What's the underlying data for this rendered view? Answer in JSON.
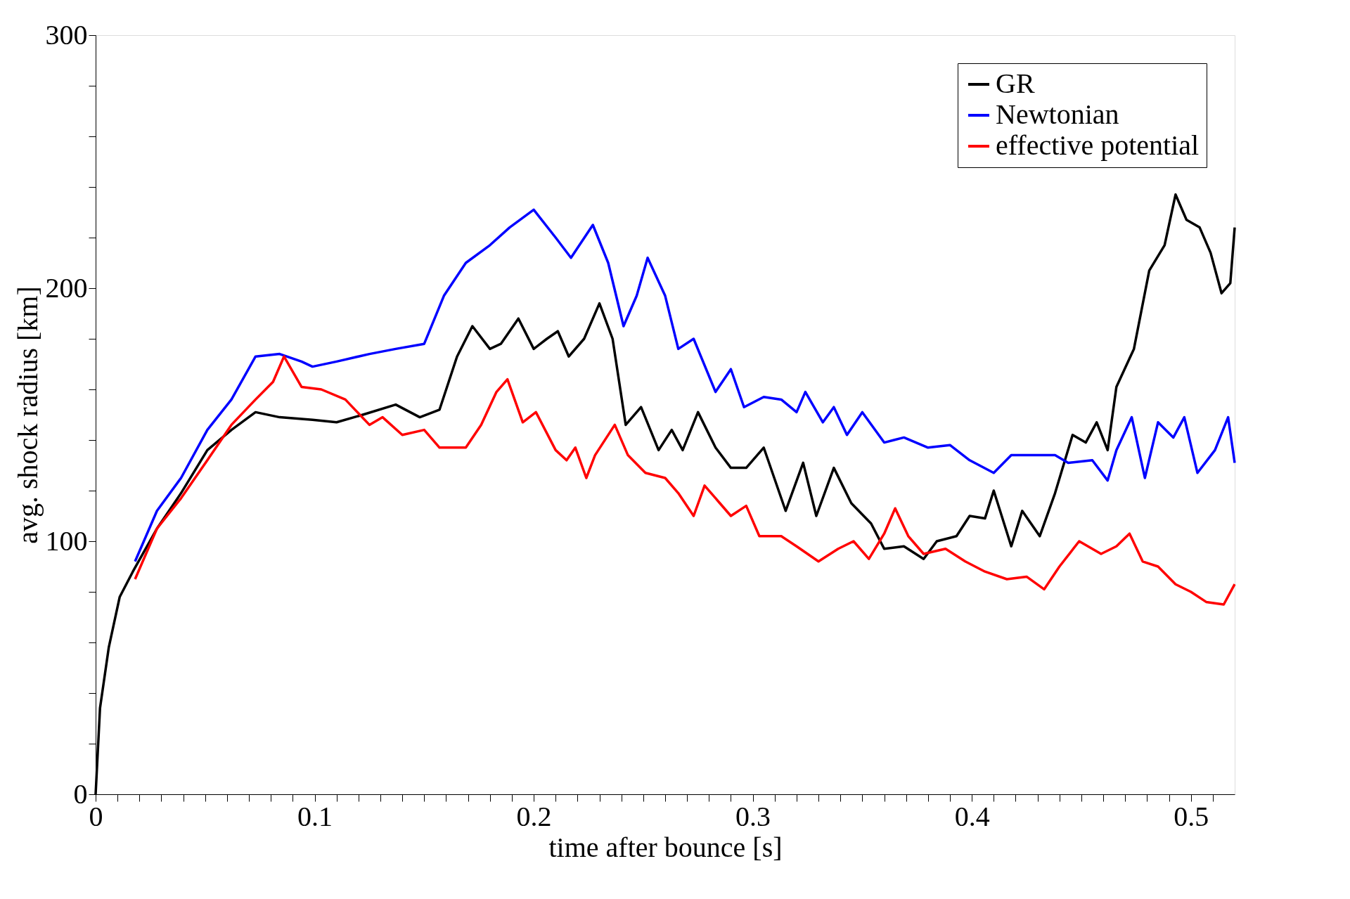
{
  "chart_data": {
    "type": "line",
    "xlabel": "time after bounce [s]",
    "ylabel": "avg. shock radius [km]",
    "xlim": [
      0,
      0.52
    ],
    "ylim": [
      0,
      300
    ],
    "xticks": [
      0,
      {
        "value": 0.01,
        "label": null
      },
      {
        "value": 0.02,
        "label": null
      },
      {
        "value": 0.03,
        "label": null
      },
      {
        "value": 0.04,
        "label": null
      },
      {
        "value": 0.05,
        "label": null
      },
      {
        "value": 0.06,
        "label": null
      },
      {
        "value": 0.07,
        "label": null
      },
      {
        "value": 0.08,
        "label": null
      },
      {
        "value": 0.09,
        "label": null
      },
      0.1,
      {
        "value": 0.11,
        "label": null
      },
      {
        "value": 0.12,
        "label": null
      },
      {
        "value": 0.13,
        "label": null
      },
      {
        "value": 0.14,
        "label": null
      },
      {
        "value": 0.15,
        "label": null
      },
      {
        "value": 0.16,
        "label": null
      },
      {
        "value": 0.17,
        "label": null
      },
      {
        "value": 0.18,
        "label": null
      },
      {
        "value": 0.19,
        "label": null
      },
      0.2,
      {
        "value": 0.21,
        "label": null
      },
      {
        "value": 0.22,
        "label": null
      },
      {
        "value": 0.23,
        "label": null
      },
      {
        "value": 0.24,
        "label": null
      },
      {
        "value": 0.25,
        "label": null
      },
      {
        "value": 0.26,
        "label": null
      },
      {
        "value": 0.27,
        "label": null
      },
      {
        "value": 0.28,
        "label": null
      },
      {
        "value": 0.29,
        "label": null
      },
      0.3,
      {
        "value": 0.31,
        "label": null
      },
      {
        "value": 0.32,
        "label": null
      },
      {
        "value": 0.33,
        "label": null
      },
      {
        "value": 0.34,
        "label": null
      },
      {
        "value": 0.35,
        "label": null
      },
      {
        "value": 0.36,
        "label": null
      },
      {
        "value": 0.37,
        "label": null
      },
      {
        "value": 0.38,
        "label": null
      },
      {
        "value": 0.39,
        "label": null
      },
      0.4,
      {
        "value": 0.41,
        "label": null
      },
      {
        "value": 0.42,
        "label": null
      },
      {
        "value": 0.43,
        "label": null
      },
      {
        "value": 0.44,
        "label": null
      },
      {
        "value": 0.45,
        "label": null
      },
      {
        "value": 0.46,
        "label": null
      },
      {
        "value": 0.47,
        "label": null
      },
      {
        "value": 0.48,
        "label": null
      },
      {
        "value": 0.49,
        "label": null
      },
      0.5,
      {
        "value": 0.51,
        "label": null
      }
    ],
    "yticks": [
      0,
      {
        "value": 20,
        "label": null
      },
      {
        "value": 40,
        "label": null
      },
      {
        "value": 60,
        "label": null
      },
      {
        "value": 80,
        "label": null
      },
      100,
      {
        "value": 120,
        "label": null
      },
      {
        "value": 140,
        "label": null
      },
      {
        "value": 160,
        "label": null
      },
      {
        "value": 180,
        "label": null
      },
      200,
      {
        "value": 220,
        "label": null
      },
      {
        "value": 240,
        "label": null
      },
      {
        "value": 260,
        "label": null
      },
      {
        "value": 280,
        "label": null
      },
      300
    ],
    "grid": false,
    "legend": "top right",
    "line_style": "solid",
    "marker": "none",
    "series": [
      {
        "name": "GR",
        "color": "#000000",
        "x": [
          0,
          0.002,
          0.006,
          0.011,
          0.017,
          0.028,
          0.039,
          0.051,
          0.062,
          0.073,
          0.084,
          0.099,
          0.11,
          0.122,
          0.137,
          0.148,
          0.157,
          0.165,
          0.172,
          0.18,
          0.185,
          0.193,
          0.2,
          0.206,
          0.211,
          0.216,
          0.223,
          0.23,
          0.236,
          0.242,
          0.249,
          0.257,
          0.263,
          0.268,
          0.275,
          0.283,
          0.29,
          0.297,
          0.305,
          0.315,
          0.323,
          0.329,
          0.337,
          0.345,
          0.354,
          0.36,
          0.369,
          0.378,
          0.384,
          0.393,
          0.399,
          0.406,
          0.41,
          0.418,
          0.423,
          0.431,
          0.438,
          0.446,
          0.452,
          0.457,
          0.462,
          0.466,
          0.474,
          0.481,
          0.488,
          0.493,
          0.498,
          0.504,
          0.509,
          0.514,
          0.518,
          0.52
        ],
        "values": [
          0,
          34,
          58,
          78,
          88,
          105,
          119,
          136,
          144,
          151,
          149,
          148,
          147,
          150,
          154,
          149,
          152,
          173,
          185,
          176,
          178,
          188,
          176,
          180,
          183,
          173,
          180,
          194,
          180,
          146,
          153,
          136,
          144,
          136,
          151,
          137,
          129,
          129,
          137,
          112,
          131,
          110,
          129,
          115,
          107,
          97,
          98,
          93,
          100,
          102,
          110,
          109,
          120,
          98,
          112,
          102,
          119,
          142,
          139,
          147,
          136,
          161,
          176,
          207,
          217,
          237,
          227,
          224,
          214,
          198,
          202,
          224
        ]
      },
      {
        "name": "Newtonian",
        "color": "#0000ff",
        "x": [
          0.018,
          0.028,
          0.039,
          0.051,
          0.062,
          0.073,
          0.084,
          0.094,
          0.099,
          0.11,
          0.125,
          0.137,
          0.15,
          0.159,
          0.169,
          0.18,
          0.189,
          0.2,
          0.21,
          0.217,
          0.227,
          0.234,
          0.241,
          0.247,
          0.252,
          0.26,
          0.266,
          0.273,
          0.283,
          0.29,
          0.296,
          0.305,
          0.313,
          0.32,
          0.324,
          0.332,
          0.337,
          0.343,
          0.35,
          0.36,
          0.369,
          0.38,
          0.39,
          0.399,
          0.41,
          0.418,
          0.429,
          0.438,
          0.444,
          0.455,
          0.462,
          0.466,
          0.473,
          0.479,
          0.485,
          0.492,
          0.497,
          0.503,
          0.511,
          0.517,
          0.52
        ],
        "values": [
          92,
          112,
          125,
          144,
          156,
          173,
          174,
          171,
          169,
          171,
          174,
          176,
          178,
          197,
          210,
          217,
          224,
          231,
          220,
          212,
          225,
          210,
          185,
          197,
          212,
          197,
          176,
          180,
          159,
          168,
          153,
          157,
          156,
          151,
          159,
          147,
          153,
          142,
          151,
          139,
          141,
          137,
          138,
          132,
          127,
          134,
          134,
          134,
          131,
          132,
          124,
          136,
          149,
          125,
          147,
          141,
          149,
          127,
          136,
          149,
          131
        ]
      },
      {
        "name": "effective potential",
        "color": "#ff0000",
        "x": [
          0.018,
          0.028,
          0.039,
          0.051,
          0.062,
          0.073,
          0.081,
          0.086,
          0.094,
          0.103,
          0.114,
          0.125,
          0.131,
          0.14,
          0.15,
          0.157,
          0.169,
          0.176,
          0.183,
          0.188,
          0.195,
          0.201,
          0.21,
          0.215,
          0.219,
          0.224,
          0.228,
          0.237,
          0.243,
          0.251,
          0.26,
          0.266,
          0.273,
          0.278,
          0.285,
          0.29,
          0.297,
          0.303,
          0.313,
          0.32,
          0.33,
          0.339,
          0.346,
          0.353,
          0.36,
          0.365,
          0.371,
          0.378,
          0.388,
          0.397,
          0.406,
          0.416,
          0.425,
          0.433,
          0.44,
          0.449,
          0.459,
          0.466,
          0.472,
          0.478,
          0.485,
          0.493,
          0.5,
          0.507,
          0.515,
          0.52
        ],
        "values": [
          85,
          105,
          117,
          132,
          146,
          156,
          163,
          173,
          161,
          160,
          156,
          146,
          149,
          142,
          144,
          137,
          137,
          146,
          159,
          164,
          147,
          151,
          136,
          132,
          137,
          125,
          134,
          146,
          134,
          127,
          125,
          119,
          110,
          122,
          115,
          110,
          114,
          102,
          102,
          98,
          92,
          97,
          100,
          93,
          103,
          113,
          102,
          95,
          97,
          92,
          88,
          85,
          86,
          81,
          90,
          100,
          95,
          98,
          103,
          92,
          90,
          83,
          80,
          76,
          75,
          83
        ]
      }
    ]
  }
}
